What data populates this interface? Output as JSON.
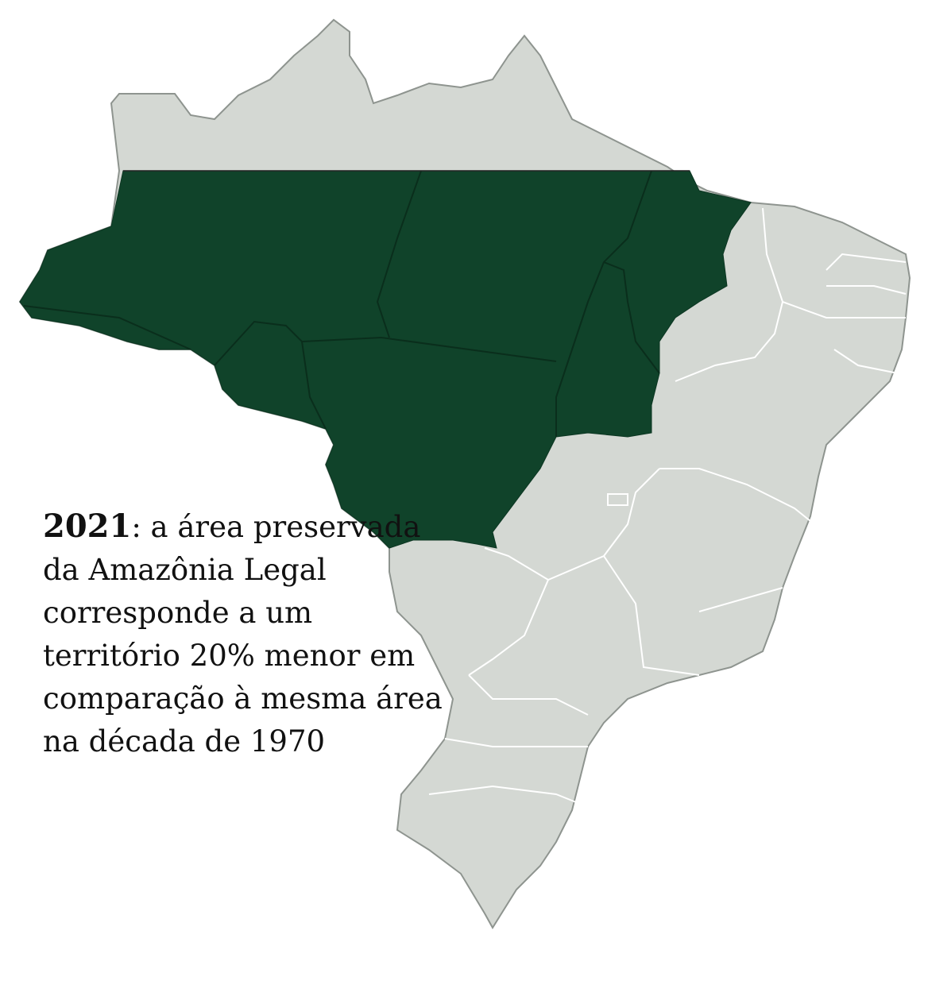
{
  "colors": {
    "amazonia_legal": "#10432A",
    "rest_of_brazil": "#D4D8D3",
    "state_borders": "#FFFFFF",
    "outline": "#8E948F"
  },
  "caption": {
    "year": "2021",
    "text": ": a área preservada da Amazônia Legal corresponde a um território 20% menor em comparação à mesma área na década de 1970"
  }
}
